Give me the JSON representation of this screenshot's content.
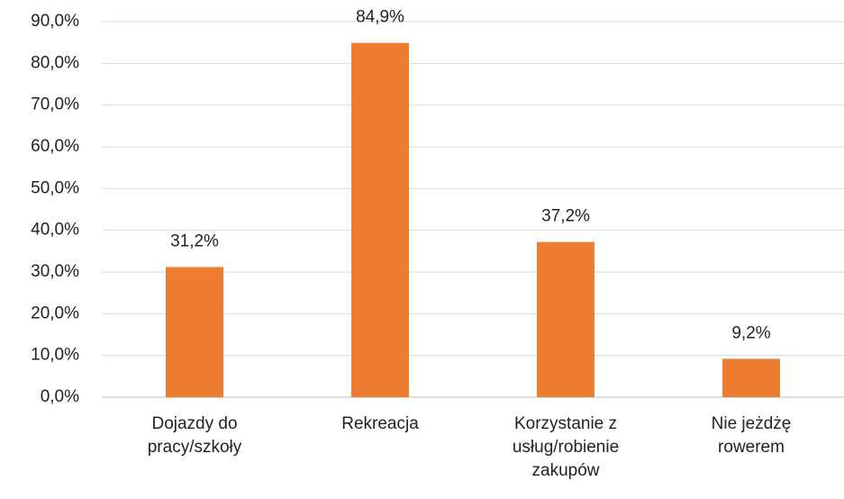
{
  "chart_data": {
    "type": "bar",
    "categories": [
      "Dojazdy do pracy/szkoły",
      "Rekreacja",
      "Korzystanie z usług/robienie zakupów",
      "Nie jeżdżę rowerem"
    ],
    "values": [
      31.2,
      84.9,
      37.2,
      9.2
    ],
    "value_labels": [
      "31,2%",
      "84,9%",
      "37,2%",
      "9,2%"
    ],
    "color": "#ed7d31",
    "ylim": [
      0,
      90
    ],
    "yticks": [
      {
        "value": 0,
        "label": "0,0%"
      },
      {
        "value": 10,
        "label": "10,0%"
      },
      {
        "value": 20,
        "label": "20,0%"
      },
      {
        "value": 30,
        "label": "30,0%"
      },
      {
        "value": 40,
        "label": "40,0%"
      },
      {
        "value": 50,
        "label": "50,0%"
      },
      {
        "value": 60,
        "label": "60,0%"
      },
      {
        "value": 70,
        "label": "70,0%"
      },
      {
        "value": 80,
        "label": "80,0%"
      },
      {
        "value": 90,
        "label": "90,0%"
      }
    ],
    "grid": true
  }
}
